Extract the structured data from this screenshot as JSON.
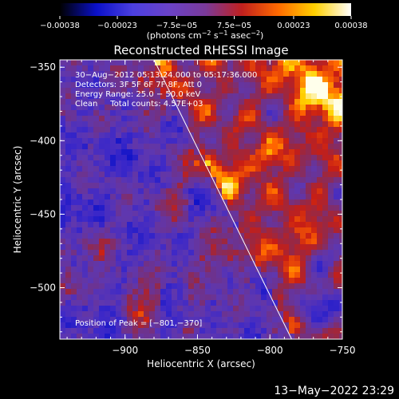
{
  "chart_data": {
    "type": "heatmap",
    "title": "Reconstructed RHESSI Image",
    "xlabel": "Heliocentric X (arcsec)",
    "ylabel": "Heliocentric Y (arcsec)",
    "xlim": [
      -945,
      -750
    ],
    "ylim": [
      -535,
      -345
    ],
    "x_ticks": [
      -900,
      -850,
      -800,
      -750
    ],
    "x_tick_labels": [
      "−900",
      "−850",
      "−800",
      "−750"
    ],
    "y_ticks": [
      -350,
      -400,
      -450,
      -500
    ],
    "y_tick_labels": [
      "−350",
      "−400",
      "−450",
      "−500"
    ],
    "colorbar": {
      "min": -0.00038,
      "max": 0.00038,
      "ticks": [
        -0.00038,
        -0.00023,
        -7.5e-05,
        7.5e-05,
        0.00023,
        0.00038
      ],
      "tick_labels": [
        "−0.00038",
        "−0.00023",
        "−7.5e−05",
        "7.5e−05",
        "0.00023",
        "0.00038"
      ],
      "units_parts": [
        "(photons cm",
        "−2",
        " s",
        "−1",
        " asec",
        "−2",
        ")"
      ]
    },
    "annotations": {
      "time_range": "30−Aug−2012 05:13:24.000 to 05:17:36.000",
      "detectors": "Detectors: 3F 5F 6F 7F 8F, Att 0",
      "energy_range": "Energy Range: 25.0 − 50.0 keV",
      "method_counts": "Clean     Total counts: 4.57E+03",
      "peak": "Position of Peak = [−801,−370]"
    },
    "peak_position": [
      -801,
      -370
    ],
    "limb_line": [
      [
        -880,
        -345
      ],
      [
        -785,
        -535
      ]
    ],
    "footer_timestamp": "13−May−2022 23:29",
    "colors": {
      "colormap": [
        "#000000",
        "#0a10c8",
        "#4b3fe0",
        "#6a42c8",
        "#7a3a9a",
        "#c0201e",
        "#ff6a00",
        "#ffd000",
        "#ffffff"
      ],
      "limb_line": "#ffffff",
      "background": "#000000"
    }
  }
}
